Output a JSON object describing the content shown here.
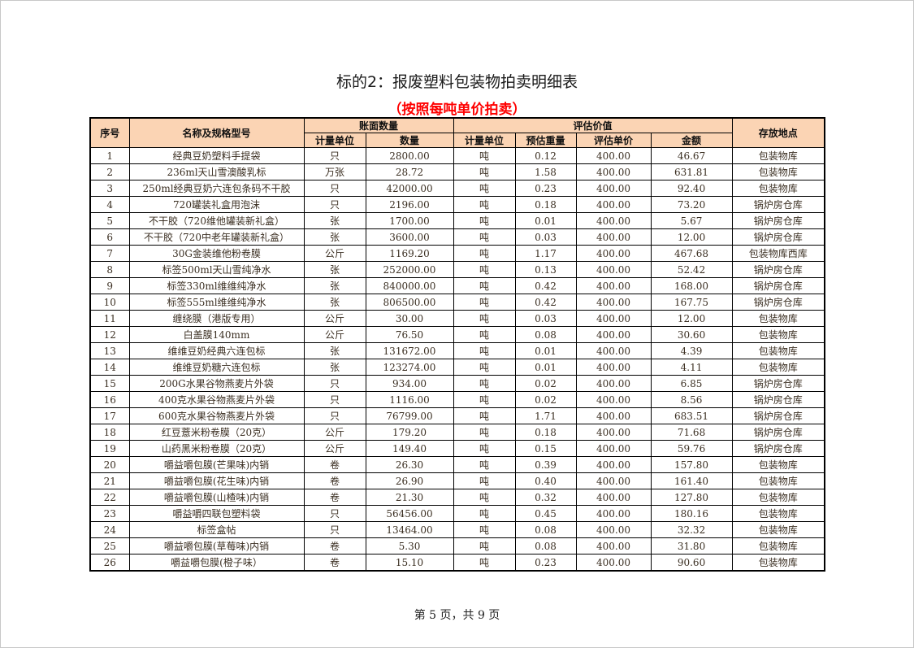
{
  "title": "标的2：报废塑料包装物拍卖明细表",
  "subtitle": "（按照每吨单价拍卖）",
  "header": {
    "seq": "序号",
    "name": "名称及规格型号",
    "book_group": "账面数量",
    "book_unit": "计量单位",
    "book_qty": "数量",
    "eval_group": "评估价值",
    "eval_unit": "计量单位",
    "eval_weight": "预估重量",
    "eval_price": "评估单价",
    "eval_amount": "金额",
    "location": "存放地点"
  },
  "rows": [
    [
      "1",
      "经典豆奶塑料手提袋",
      "只",
      "2800.00",
      "吨",
      "0.12",
      "400.00",
      "46.67",
      "包装物库"
    ],
    [
      "2",
      "236ml天山雪澳酸乳标",
      "万张",
      "28.72",
      "吨",
      "1.58",
      "400.00",
      "631.81",
      "包装物库"
    ],
    [
      "3",
      "250ml经典豆奶六连包条码不干胶",
      "只",
      "42000.00",
      "吨",
      "0.23",
      "400.00",
      "92.40",
      "包装物库"
    ],
    [
      "4",
      "720罐装礼盒用泡沫",
      "只",
      "2196.00",
      "吨",
      "0.18",
      "400.00",
      "73.20",
      "锅炉房仓库"
    ],
    [
      "5",
      "不干胶（720维他罐装新礼盒）",
      "张",
      "1700.00",
      "吨",
      "0.01",
      "400.00",
      "5.67",
      "锅炉房仓库"
    ],
    [
      "6",
      "不干胶（720中老年罐装新礼盒）",
      "张",
      "3600.00",
      "吨",
      "0.03",
      "400.00",
      "12.00",
      "锅炉房仓库"
    ],
    [
      "7",
      "30G金装维他粉卷膜",
      "公斤",
      "1169.20",
      "吨",
      "1.17",
      "400.00",
      "467.68",
      "包装物库西库"
    ],
    [
      "8",
      "标签500ml天山雪纯净水",
      "张",
      "252000.00",
      "吨",
      "0.13",
      "400.00",
      "52.42",
      "锅炉房仓库"
    ],
    [
      "9",
      "标签330ml维维纯净水",
      "张",
      "840000.00",
      "吨",
      "0.42",
      "400.00",
      "168.00",
      "锅炉房仓库"
    ],
    [
      "10",
      "标签555ml维维纯净水",
      "张",
      "806500.00",
      "吨",
      "0.42",
      "400.00",
      "167.75",
      "锅炉房仓库"
    ],
    [
      "11",
      "缠绕膜（港版专用）",
      "公斤",
      "30.00",
      "吨",
      "0.03",
      "400.00",
      "12.00",
      "包装物库"
    ],
    [
      "12",
      "白盖膜140mm",
      "公斤",
      "76.50",
      "吨",
      "0.08",
      "400.00",
      "30.60",
      "包装物库"
    ],
    [
      "13",
      "维维豆奶经典六连包标",
      "张",
      "131672.00",
      "吨",
      "0.01",
      "400.00",
      "4.39",
      "包装物库"
    ],
    [
      "14",
      "维维豆奶糖六连包标",
      "张",
      "123274.00",
      "吨",
      "0.01",
      "400.00",
      "4.11",
      "包装物库"
    ],
    [
      "15",
      "200G水果谷物燕麦片外袋",
      "只",
      "934.00",
      "吨",
      "0.02",
      "400.00",
      "6.85",
      "锅炉房仓库"
    ],
    [
      "16",
      "400克水果谷物燕麦片外袋",
      "只",
      "1116.00",
      "吨",
      "0.02",
      "400.00",
      "8.56",
      "锅炉房仓库"
    ],
    [
      "17",
      "600克水果谷物燕麦片外袋",
      "只",
      "76799.00",
      "吨",
      "1.71",
      "400.00",
      "683.51",
      "锅炉房仓库"
    ],
    [
      "18",
      "红豆薏米粉卷膜（20克）",
      "公斤",
      "179.20",
      "吨",
      "0.18",
      "400.00",
      "71.68",
      "锅炉房仓库"
    ],
    [
      "19",
      "山药黑米粉卷膜（20克）",
      "公斤",
      "149.40",
      "吨",
      "0.15",
      "400.00",
      "59.76",
      "锅炉房仓库"
    ],
    [
      "20",
      "嚼益嚼包膜(芒果味)内销",
      "卷",
      "26.30",
      "吨",
      "0.39",
      "400.00",
      "157.80",
      "包装物库"
    ],
    [
      "21",
      "嚼益嚼包膜(花生味)内销",
      "卷",
      "26.90",
      "吨",
      "0.40",
      "400.00",
      "161.40",
      "包装物库"
    ],
    [
      "22",
      "嚼益嚼包膜(山楂味)内销",
      "卷",
      "21.30",
      "吨",
      "0.32",
      "400.00",
      "127.80",
      "包装物库"
    ],
    [
      "23",
      "嚼益嚼四联包塑料袋",
      "只",
      "56456.00",
      "吨",
      "0.45",
      "400.00",
      "180.16",
      "包装物库"
    ],
    [
      "24",
      "标签盒帖",
      "只",
      "13464.00",
      "吨",
      "0.08",
      "400.00",
      "32.32",
      "包装物库"
    ],
    [
      "25",
      "嚼益嚼包膜(草莓味)内销",
      "卷",
      "5.30",
      "吨",
      "0.08",
      "400.00",
      "31.80",
      "包装物库"
    ],
    [
      "26",
      "嚼益嚼包膜(橙子味）",
      "卷",
      "15.10",
      "吨",
      "0.23",
      "400.00",
      "90.60",
      "包装物库"
    ]
  ],
  "footer": "第 5 页，共 9 页",
  "colors": {
    "header_fill": "#fbd4b4",
    "subtitle": "#ff0000"
  }
}
